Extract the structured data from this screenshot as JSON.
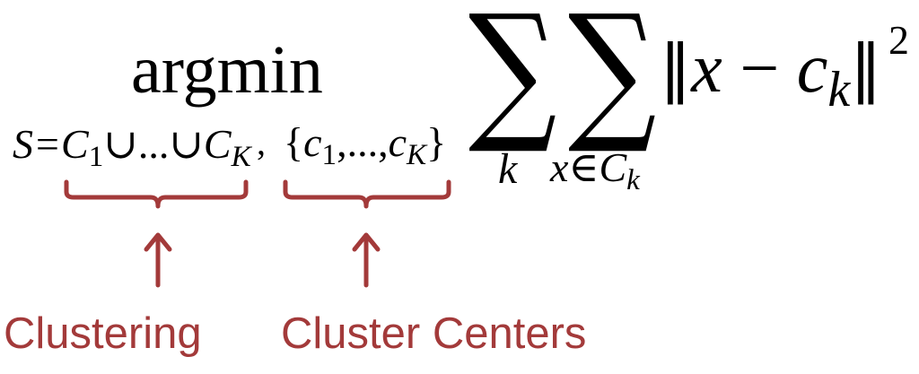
{
  "formula": {
    "argmin": "argmin",
    "sum_symbol": "∑",
    "norm_bar": "‖",
    "norm_x": "x",
    "norm_minus": " − ",
    "norm_c": "c",
    "norm_k": "k",
    "square": "2",
    "sub_s_prefix": "S=",
    "sub_c": "C",
    "sub_1": "1",
    "sub_union_dots": "∪...∪",
    "sub_K": "K",
    "sub_comma": ",",
    "set_open": "{",
    "set_c": "c",
    "set_1": "1",
    "set_mid": ",...,",
    "set_K": "K",
    "set_close": "}",
    "outer_index": "k",
    "inner_index_x": "x",
    "inner_index_in": "∈",
    "inner_index_C": "C",
    "inner_index_k": "k"
  },
  "annotations": {
    "clustering": "Clustering",
    "cluster_centers": "Cluster Centers"
  },
  "colors": {
    "annotation": "#a33a3a",
    "formula": "#000000"
  }
}
